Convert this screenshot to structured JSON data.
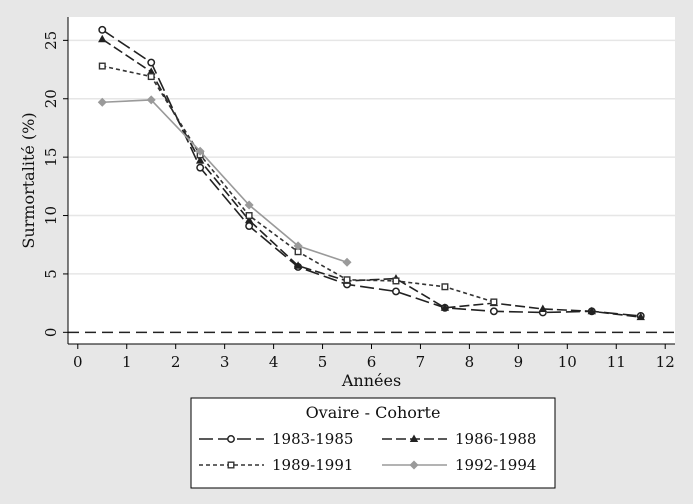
{
  "chart_data": {
    "type": "line",
    "title": "",
    "xlabel": "Années",
    "ylabel": "Surmortalité (%)",
    "xlim": [
      -0.2,
      12.2
    ],
    "ylim": [
      -1.0,
      27.0
    ],
    "xticks": [
      "0",
      "1",
      "2",
      "3",
      "4",
      "5",
      "6",
      "7",
      "8",
      "9",
      "10",
      "11",
      "12"
    ],
    "yticks": [
      "0",
      "5",
      "10",
      "15",
      "20",
      "25"
    ],
    "grid": "horizontal",
    "reference_line": {
      "y": 0,
      "style": "dashed"
    },
    "legend": {
      "title": "Ovaire - Cohorte",
      "placement": "bottom"
    },
    "series": [
      {
        "name": "1983-1985",
        "marker": "circle-open",
        "line": "long-dash",
        "color": "#222222",
        "x": [
          0.5,
          1.5,
          2.5,
          3.5,
          4.5,
          5.5,
          6.5,
          7.5,
          8.5,
          9.5,
          10.5,
          11.5
        ],
        "y": [
          25.9,
          23.1,
          14.1,
          9.1,
          5.6,
          4.1,
          3.5,
          2.1,
          1.8,
          1.7,
          1.8,
          1.4
        ]
      },
      {
        "name": "1986-1988",
        "marker": "triangle-filled",
        "line": "dash",
        "color": "#222222",
        "x": [
          0.5,
          1.5,
          2.5,
          3.5,
          4.5,
          5.5,
          6.5,
          7.5,
          8.5,
          9.5,
          10.5,
          11.5
        ],
        "y": [
          25.1,
          22.3,
          14.7,
          9.6,
          5.7,
          4.4,
          4.6,
          2.1,
          2.5,
          2.0,
          1.8,
          1.3
        ]
      },
      {
        "name": "1989-1991",
        "marker": "square-open",
        "line": "short-dash",
        "color": "#333333",
        "x": [
          0.5,
          1.5,
          2.5,
          3.5,
          4.5,
          5.5,
          6.5,
          7.5,
          8.5
        ],
        "y": [
          22.8,
          21.9,
          15.2,
          10.0,
          6.9,
          4.5,
          4.4,
          3.9,
          2.6
        ]
      },
      {
        "name": "1992-1994",
        "marker": "diamond-filled",
        "line": "solid",
        "color": "#9a9a9a",
        "x": [
          0.5,
          1.5,
          2.5,
          3.5,
          4.5,
          5.5
        ],
        "y": [
          19.7,
          19.9,
          15.5,
          10.9,
          7.4,
          6.0
        ]
      }
    ]
  }
}
